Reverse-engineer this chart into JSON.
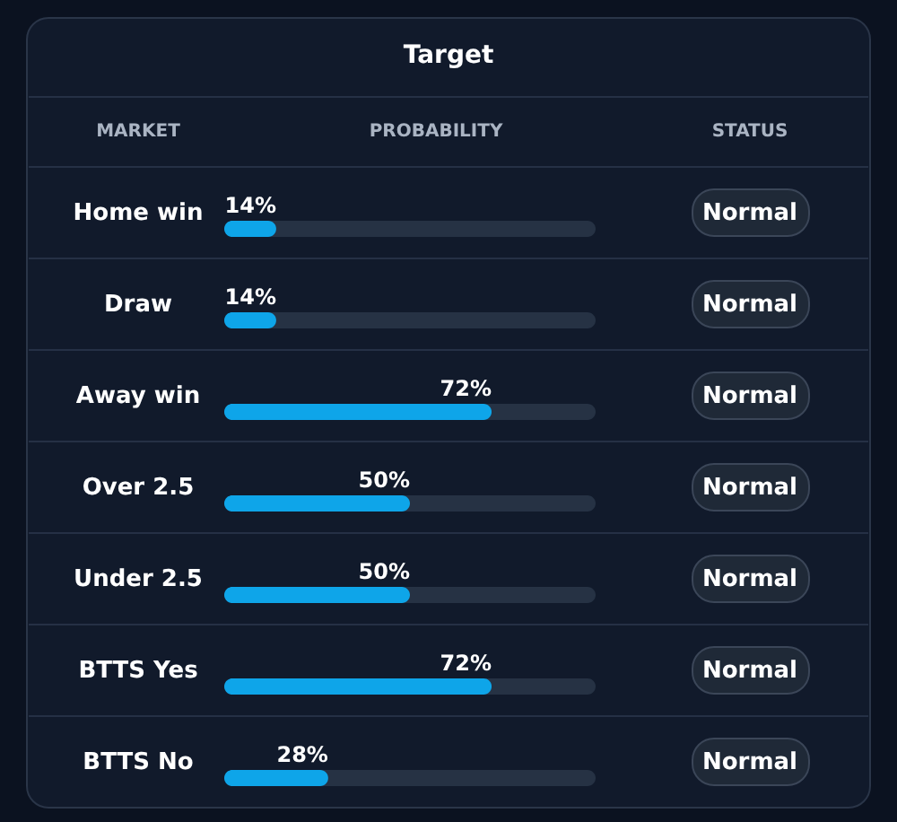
{
  "chart_data": {
    "type": "bar",
    "orientation": "horizontal",
    "title": "Target",
    "categories": [
      "Home win",
      "Draw",
      "Away win",
      "Over 2.5",
      "Under 2.5",
      "BTTS Yes",
      "BTTS No"
    ],
    "values": [
      14,
      14,
      72,
      50,
      50,
      72,
      28
    ],
    "color": "#0ea5e9",
    "value_labels": [
      "14%",
      "14%",
      "72%",
      "50%",
      "50%",
      "72%",
      "28%"
    ],
    "annotations": [
      "MARKET",
      "PROBABILITY",
      "STATUS",
      "Normal",
      "Normal",
      "Normal",
      "Normal",
      "Normal",
      "Normal",
      "Normal"
    ]
  }
}
